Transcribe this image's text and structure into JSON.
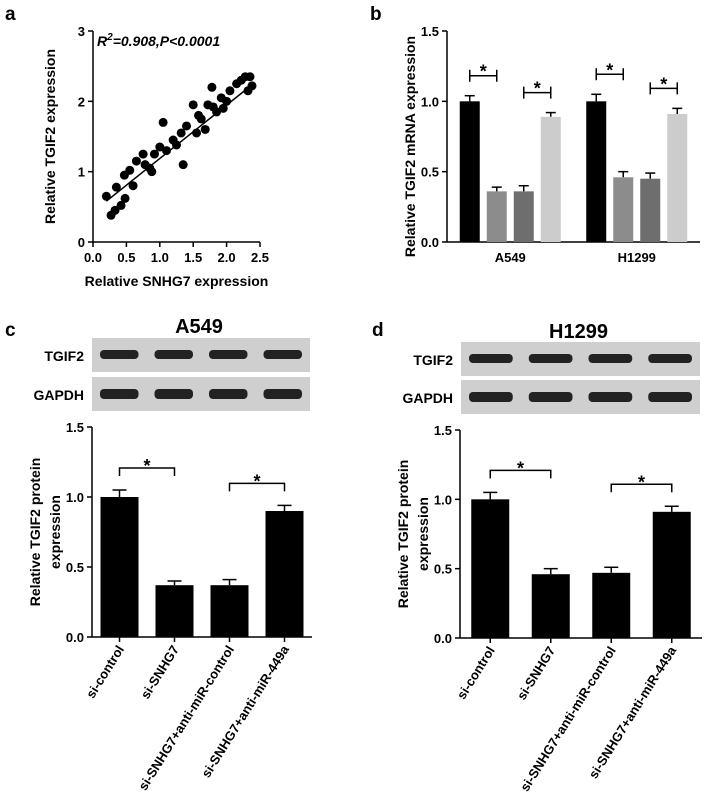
{
  "chart_data": [
    {
      "type": "scatter",
      "panel_label": "a",
      "annotation": [
        "R",
        "2",
        "=0.908,P<0.0001"
      ],
      "x_label": "Relative SNHG7 expression",
      "y_label": "Relative TGIF2 expression",
      "x": [
        0.2,
        0.27,
        0.33,
        0.35,
        0.42,
        0.47,
        0.48,
        0.55,
        0.6,
        0.65,
        0.75,
        0.78,
        0.85,
        0.88,
        0.92,
        1.0,
        1.05,
        1.1,
        1.2,
        1.25,
        1.32,
        1.35,
        1.4,
        1.5,
        1.55,
        1.58,
        1.62,
        1.68,
        1.72,
        1.78,
        1.8,
        1.85,
        1.92,
        1.95,
        2.0,
        2.05,
        2.15,
        2.22,
        2.28,
        2.32,
        2.35,
        2.38
      ],
      "y": [
        0.65,
        0.38,
        0.45,
        0.78,
        0.52,
        0.95,
        0.62,
        1.02,
        0.8,
        1.15,
        1.25,
        1.1,
        1.05,
        1.0,
        1.25,
        1.35,
        1.7,
        1.3,
        1.45,
        1.38,
        1.55,
        1.1,
        1.65,
        1.95,
        1.55,
        1.8,
        1.75,
        1.6,
        1.95,
        2.2,
        1.92,
        1.85,
        2.05,
        1.9,
        2.0,
        2.15,
        2.25,
        2.3,
        2.35,
        2.15,
        2.35,
        2.22
      ],
      "color": "#000000",
      "fit_line": {
        "x": [
          0.2,
          2.4
        ],
        "y": [
          0.58,
          2.25
        ]
      },
      "xlim": [
        0,
        2.5
      ],
      "xticks": [
        {
          "value": 0,
          "label": "0.0"
        },
        0.5,
        {
          "value": 1,
          "label": "1.0"
        },
        1.5,
        {
          "value": 2,
          "label": "2.0"
        },
        2.5
      ],
      "ylim": [
        0,
        3
      ],
      "yticks": [
        0,
        1,
        2,
        3
      ]
    },
    {
      "type": "grouped_bar",
      "panel_label": "b",
      "y_label": "Relative TGIF2 mRNA expression",
      "categories": [
        "A549",
        "H1299"
      ],
      "series": [
        {
          "color": "#000000",
          "values": [
            1.0,
            1.0
          ],
          "errors": [
            0.04,
            0.05
          ]
        },
        {
          "color": "#8c8c8c",
          "values": [
            0.36,
            0.46
          ],
          "errors": [
            0.03,
            0.04
          ]
        },
        {
          "color": "#6e6e6e",
          "values": [
            0.36,
            0.45
          ],
          "errors": [
            0.04,
            0.04
          ]
        },
        {
          "color": "#cccccc",
          "values": [
            0.89,
            0.91
          ],
          "errors": [
            0.03,
            0.04
          ]
        }
      ],
      "ylim": [
        0,
        1.5
      ],
      "yticks": [
        {
          "value": 0,
          "label": "0.0"
        },
        0.5,
        {
          "value": 1,
          "label": "1.0"
        },
        1.5
      ],
      "brackets": [
        {
          "category": 0,
          "from": 0,
          "to": 1,
          "label": "*"
        },
        {
          "category": 0,
          "from": 2,
          "to": 3,
          "label": "*"
        },
        {
          "category": 1,
          "from": 0,
          "to": 1,
          "label": "*"
        },
        {
          "category": 1,
          "from": 2,
          "to": 3,
          "label": "*"
        }
      ]
    },
    {
      "type": "bar",
      "panel_label": "c",
      "title": "A549",
      "blot_labels": [
        "TGIF2",
        "GAPDH"
      ],
      "y_label": [
        "Relative TGIF2 protein",
        "expression"
      ],
      "categories": [
        "si-control",
        "si-SNHG7",
        "si-SNHG7+anti-miR-control",
        "si-SNHG7+anti-miR-449a"
      ],
      "values": [
        1.0,
        0.37,
        0.37,
        0.9
      ],
      "errors": [
        0.05,
        0.03,
        0.04,
        0.04
      ],
      "color": "#000000",
      "ylim": [
        0,
        1.5
      ],
      "yticks": [
        {
          "value": 0,
          "label": "0.0"
        },
        0.5,
        {
          "value": 1,
          "label": "1.0"
        },
        1.5
      ],
      "brackets": [
        {
          "from": 0,
          "to": 1,
          "label": "*"
        },
        {
          "from": 2,
          "to": 3,
          "label": "*"
        }
      ]
    },
    {
      "type": "bar",
      "panel_label": "d",
      "title": "H1299",
      "blot_labels": [
        "TGIF2",
        "GAPDH"
      ],
      "y_label": [
        "Relative TGIF2 protein",
        "expression"
      ],
      "categories": [
        "si-control",
        "si-SNHG7",
        "si-SNHG7+anti-miR-control",
        "si-SNHG7+anti-miR-449a"
      ],
      "values": [
        1.0,
        0.46,
        0.47,
        0.91
      ],
      "errors": [
        0.05,
        0.04,
        0.04,
        0.04
      ],
      "color": "#000000",
      "ylim": [
        0,
        1.5
      ],
      "yticks": [
        {
          "value": 0,
          "label": "0.0"
        },
        0.5,
        {
          "value": 1,
          "label": "1.0"
        },
        1.5
      ],
      "brackets": [
        {
          "from": 0,
          "to": 1,
          "label": "*"
        },
        {
          "from": 2,
          "to": 3,
          "label": "*"
        }
      ]
    }
  ]
}
